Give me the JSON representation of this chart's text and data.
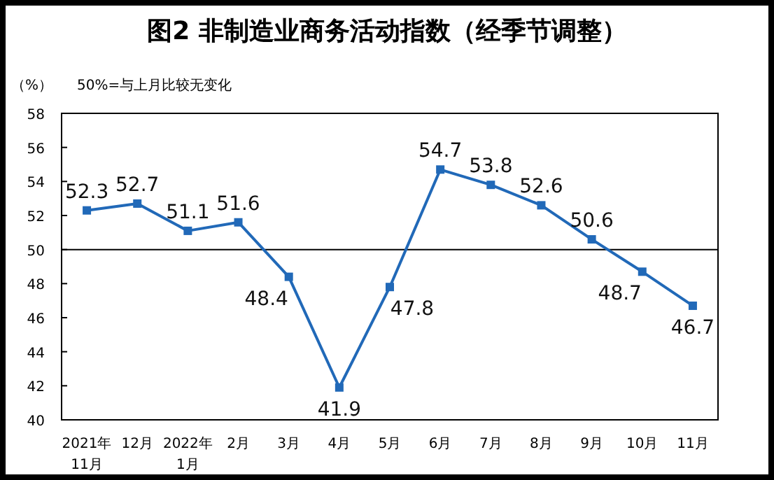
{
  "chart_data": {
    "type": "line",
    "title": "图2  非制造业商务活动指数（经季节调整）",
    "ylabel": "（%）",
    "annotations": [
      "50%=与上月比较无变化"
    ],
    "categories": [
      "2021年\n11月",
      "12月",
      "2022年\n1月",
      "2月",
      "3月",
      "4月",
      "5月",
      "6月",
      "7月",
      "8月",
      "9月",
      "10月",
      "11月"
    ],
    "series": [
      {
        "color": "#2169b8",
        "values": [
          52.3,
          52.7,
          51.1,
          51.6,
          48.4,
          41.9,
          47.8,
          54.7,
          53.8,
          52.6,
          50.6,
          48.7,
          46.7
        ]
      }
    ],
    "ylim": [
      40,
      58
    ],
    "yticks": [
      40,
      42,
      44,
      46,
      48,
      50,
      52,
      54,
      56,
      58
    ],
    "ref_lines": [
      {
        "axis": "y",
        "value": 50,
        "color": "#000000"
      }
    ],
    "data_labels": true,
    "marker": "square",
    "line_style": "solid",
    "grid": false
  }
}
